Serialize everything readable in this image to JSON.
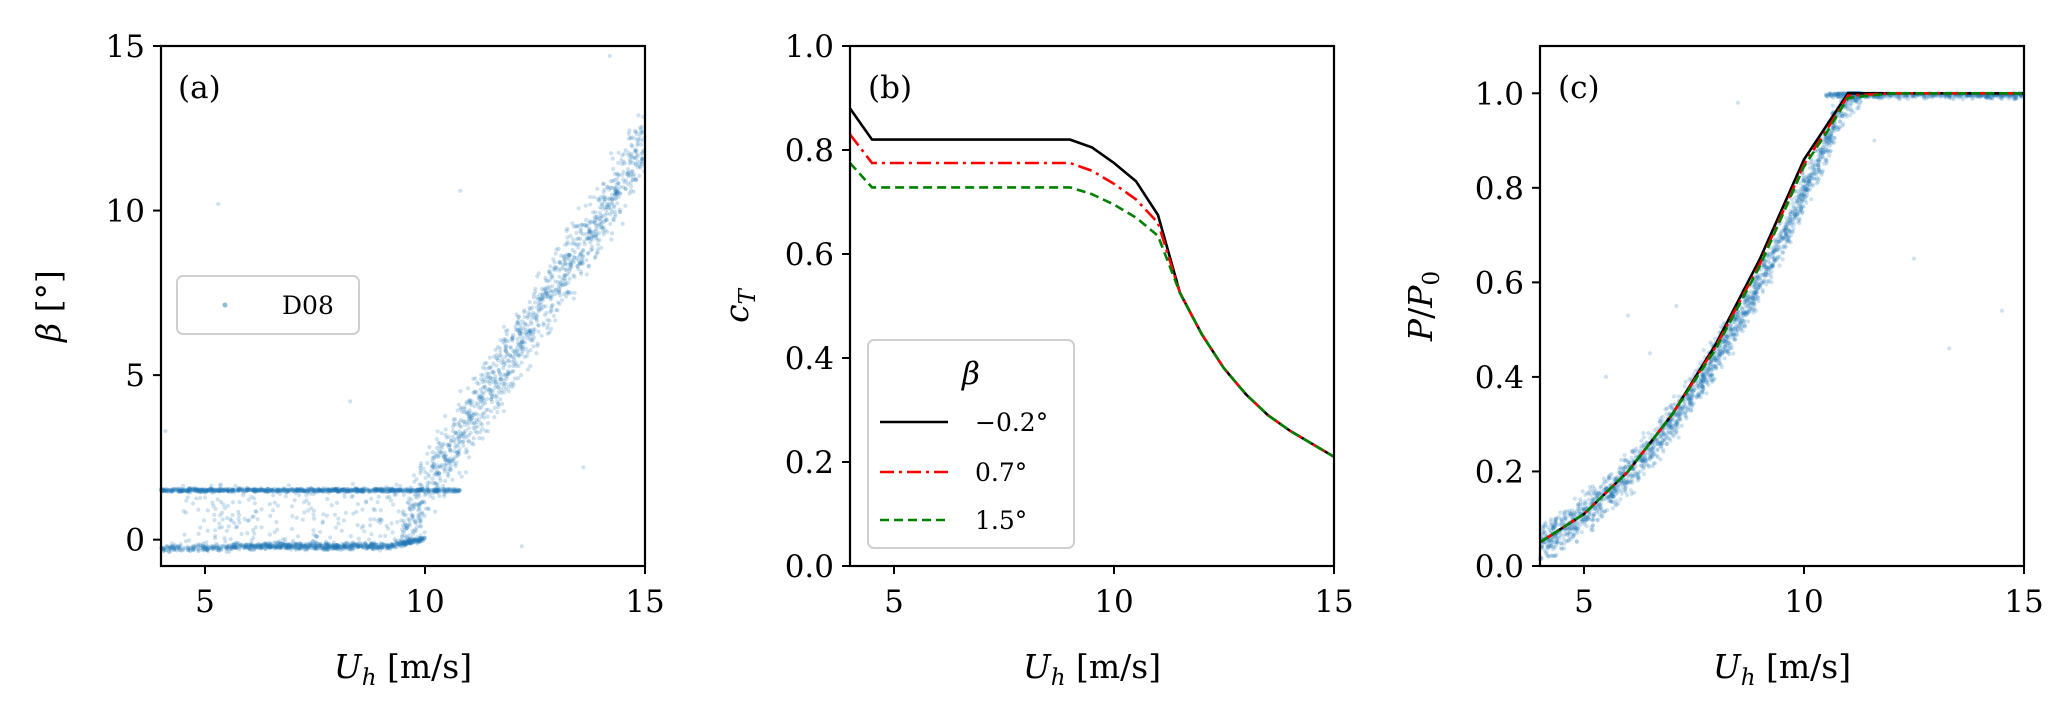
{
  "chart_data": [
    {
      "panel_label": "(a)",
      "type": "scatter",
      "xlabel": "U_h [m/s]",
      "ylabel": "β [°]",
      "xlim": [
        4,
        15
      ],
      "ylim": [
        -0.8,
        15
      ],
      "xticks": [
        "5",
        "10",
        "15"
      ],
      "yticks": [
        "0",
        "5",
        "10",
        "15"
      ],
      "legend": {
        "entries": [
          "D08"
        ],
        "placement": "center-left"
      },
      "series": [
        {
          "name": "D08",
          "color": "#1f77b4",
          "description_points": [
            [
              4.2,
              1.5
            ],
            [
              5,
              1.5
            ],
            [
              6,
              1.5
            ],
            [
              7,
              1.5
            ],
            [
              8,
              1.5
            ],
            [
              9,
              1.5
            ],
            [
              10,
              1.5
            ],
            [
              10.8,
              1.5
            ],
            [
              4.2,
              -0.2
            ],
            [
              5.5,
              -0.2
            ],
            [
              6,
              -0.15
            ],
            [
              7,
              -0.1
            ],
            [
              8,
              -0.1
            ],
            [
              9,
              0
            ],
            [
              9.5,
              0.1
            ],
            [
              10,
              0.3
            ],
            [
              10,
              1.5
            ],
            [
              10.5,
              2.2
            ],
            [
              11,
              3
            ],
            [
              11.5,
              4
            ],
            [
              12,
              5
            ],
            [
              12.5,
              6.5
            ],
            [
              13,
              8
            ],
            [
              13.5,
              9.5
            ],
            [
              14,
              10.5
            ],
            [
              14.5,
              11.5
            ],
            [
              15,
              12.2
            ],
            [
              14.2,
              14.7
            ],
            [
              5.3,
              10.2
            ],
            [
              10.8,
              10.6
            ]
          ]
        }
      ]
    },
    {
      "panel_label": "(b)",
      "type": "line",
      "xlabel": "U_h [m/s]",
      "ylabel": "c_T",
      "xlim": [
        4,
        15
      ],
      "ylim": [
        0,
        1
      ],
      "xticks": [
        "5",
        "10",
        "15"
      ],
      "yticks": [
        "0.0",
        "0.2",
        "0.4",
        "0.6",
        "0.8",
        "1.0"
      ],
      "legend": {
        "title": "β",
        "entries": [
          "−0.2°",
          "0.7°",
          "1.5°"
        ],
        "placement": "lower-left"
      },
      "series": [
        {
          "name": "−0.2°",
          "color": "#000000",
          "dash": "solid",
          "x": [
            4,
            4.5,
            5,
            6,
            7,
            8,
            9,
            9.5,
            10,
            10.5,
            11,
            11.5,
            12,
            12.5,
            13,
            13.5,
            14,
            14.5,
            15
          ],
          "y": [
            0.88,
            0.82,
            0.82,
            0.82,
            0.82,
            0.82,
            0.82,
            0.805,
            0.775,
            0.74,
            0.675,
            0.525,
            0.445,
            0.38,
            0.33,
            0.29,
            0.26,
            0.235,
            0.21
          ]
        },
        {
          "name": "0.7°",
          "color": "#ff0000",
          "dash": "dashdot",
          "x": [
            4,
            4.5,
            5,
            6,
            7,
            8,
            9,
            9.5,
            10,
            10.5,
            11,
            11.5,
            12,
            12.5,
            13,
            13.5,
            14,
            14.5,
            15
          ],
          "y": [
            0.83,
            0.775,
            0.775,
            0.775,
            0.775,
            0.775,
            0.775,
            0.76,
            0.735,
            0.705,
            0.66,
            0.525,
            0.445,
            0.38,
            0.33,
            0.29,
            0.26,
            0.235,
            0.21
          ]
        },
        {
          "name": "1.5°",
          "color": "#008000",
          "dash": "dashed",
          "x": [
            4,
            4.5,
            5,
            6,
            7,
            8,
            9,
            9.5,
            10,
            10.5,
            11,
            11.5,
            12,
            12.5,
            13,
            13.5,
            14,
            14.5,
            15
          ],
          "y": [
            0.775,
            0.728,
            0.728,
            0.728,
            0.728,
            0.728,
            0.728,
            0.715,
            0.695,
            0.67,
            0.635,
            0.525,
            0.445,
            0.38,
            0.33,
            0.29,
            0.26,
            0.235,
            0.21
          ]
        }
      ]
    },
    {
      "panel_label": "(c)",
      "type": "line",
      "xlabel": "U_h [m/s]",
      "ylabel": "P/P_0",
      "xlim": [
        4,
        15
      ],
      "ylim": [
        0,
        1.1
      ],
      "xticks": [
        "5",
        "10",
        "15"
      ],
      "yticks": [
        "0.0",
        "0.2",
        "0.4",
        "0.6",
        "0.8",
        "1.0"
      ],
      "series": [
        {
          "name": "−0.2°",
          "color": "#000000",
          "dash": "solid",
          "x": [
            4,
            5,
            6,
            7,
            8,
            9,
            10,
            10.5,
            11,
            12,
            13,
            14,
            15
          ],
          "y": [
            0.05,
            0.11,
            0.2,
            0.32,
            0.47,
            0.65,
            0.86,
            0.93,
            1.0,
            1.0,
            1.0,
            1.0,
            1.0
          ]
        },
        {
          "name": "0.7°",
          "color": "#ff0000",
          "dash": "dashdot",
          "x": [
            4,
            5,
            6,
            7,
            8,
            9,
            10,
            10.5,
            11,
            12,
            13,
            14,
            15
          ],
          "y": [
            0.05,
            0.11,
            0.2,
            0.32,
            0.465,
            0.64,
            0.85,
            0.92,
            0.995,
            1.0,
            1.0,
            1.0,
            1.0
          ]
        },
        {
          "name": "1.5°",
          "color": "#008000",
          "dash": "dashed",
          "x": [
            4,
            5,
            6,
            7,
            8,
            9,
            10,
            10.5,
            11,
            12,
            13,
            14,
            15
          ],
          "y": [
            0.05,
            0.11,
            0.2,
            0.32,
            0.46,
            0.635,
            0.845,
            0.915,
            0.99,
            1.0,
            1.0,
            1.0,
            1.0
          ]
        },
        {
          "name": "scatter",
          "color": "#1f77b4",
          "description_points": [
            [
              4.5,
              0.06
            ],
            [
              5,
              0.09
            ],
            [
              6,
              0.17
            ],
            [
              7,
              0.3
            ],
            [
              8,
              0.45
            ],
            [
              9,
              0.62
            ],
            [
              10,
              0.83
            ],
            [
              11,
              1.0
            ],
            [
              12,
              1.0
            ],
            [
              13,
              1.0
            ],
            [
              14,
              1.0
            ],
            [
              15,
              1.0
            ],
            [
              8.5,
              0.98
            ],
            [
              12.5,
              0.65
            ],
            [
              13.3,
              0.46
            ],
            [
              14.5,
              0.54
            ],
            [
              6,
              0.53
            ]
          ]
        }
      ]
    }
  ]
}
